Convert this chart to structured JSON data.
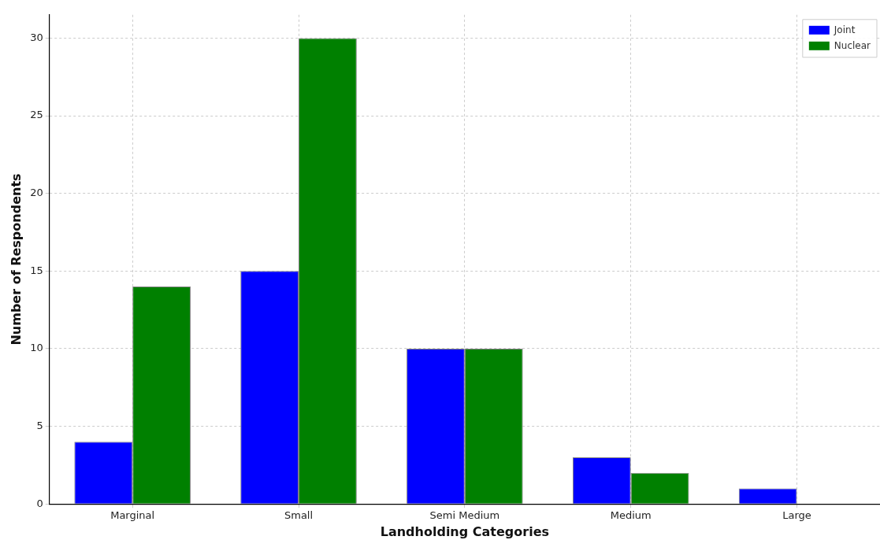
{
  "chart_data": {
    "type": "bar",
    "xlabel": "Landholding Categories",
    "ylabel": "Number of Respondents",
    "categories": [
      "Marginal",
      "Small",
      "Semi Medium",
      "Medium",
      "Large"
    ],
    "series": [
      {
        "name": "Joint",
        "color": "#0000ff",
        "values": [
          4,
          15,
          10,
          3,
          1
        ]
      },
      {
        "name": "Nuclear",
        "color": "#008000",
        "values": [
          14,
          30,
          10,
          2,
          0
        ]
      }
    ],
    "ylim": [
      0,
      31.5
    ],
    "yticks": [
      0,
      5,
      10,
      15,
      20,
      25,
      30
    ],
    "grid": true,
    "legend": "top right"
  }
}
